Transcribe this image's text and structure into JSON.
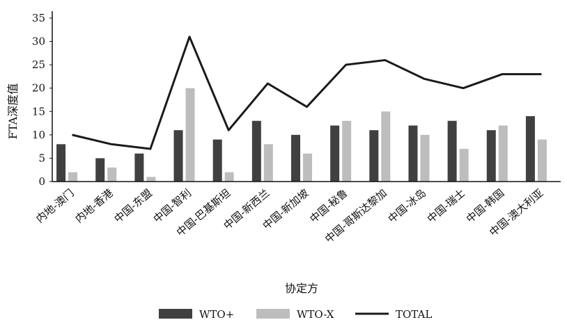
{
  "chart_data": {
    "type": "bar",
    "categories": [
      "内地-澳门",
      "内地-香港",
      "中国-东盟",
      "中国-智利",
      "中国-巴基斯坦",
      "中国-新西兰",
      "中国-新加坡",
      "中国-秘鲁",
      "中国-哥斯达黎加",
      "中国-冰岛",
      "中国-瑞士",
      "中国-韩国",
      "中国-澳大利亚"
    ],
    "series": [
      {
        "name": "WTO+",
        "kind": "bar",
        "color": "#404040",
        "values": [
          8,
          5,
          6,
          11,
          9,
          13,
          10,
          12,
          11,
          12,
          13,
          11,
          14
        ]
      },
      {
        "name": "WTO-X",
        "kind": "bar",
        "color": "#bdbdbd",
        "values": [
          2,
          3,
          1,
          20,
          2,
          8,
          6,
          13,
          15,
          10,
          7,
          12,
          9
        ]
      },
      {
        "name": "TOTAL",
        "kind": "line",
        "color": "#1a1a1a",
        "values": [
          10,
          8,
          7,
          31,
          11,
          21,
          16,
          25,
          26,
          22,
          20,
          23,
          23
        ]
      }
    ],
    "xlabel": "协定方",
    "ylabel": "FTA深度值",
    "ylim": [
      0,
      35
    ],
    "yticks": [
      0,
      5,
      10,
      15,
      20,
      25,
      30,
      35
    ],
    "grid": false,
    "legend": "bottom"
  }
}
